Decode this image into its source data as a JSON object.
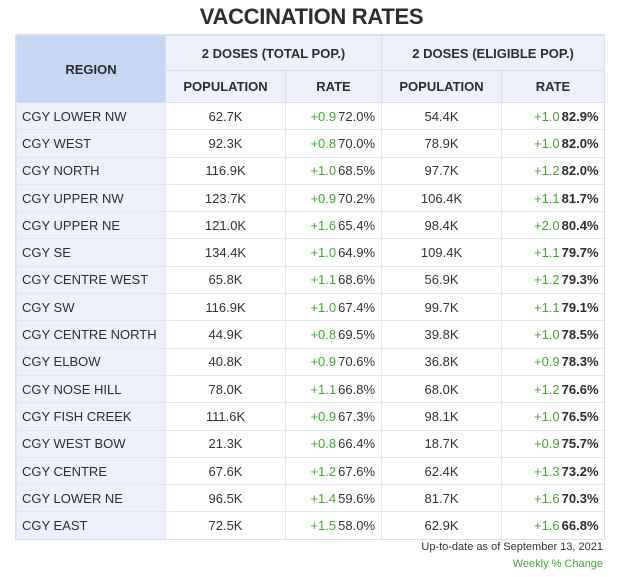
{
  "title": "VACCINATION RATES",
  "headers": {
    "region": "REGION",
    "group1": "2 DOSES (TOTAL POP.)",
    "group2": "2 DOSES (ELIGIBLE POP.)",
    "population": "POPULATION",
    "rate": "RATE"
  },
  "rows": [
    {
      "region": "CGY LOWER NW",
      "pop1": "62.7K",
      "chg1": "+0.9",
      "rate1": "72.0%",
      "pop2": "54.4K",
      "chg2": "+1.0",
      "rate2": "82.9%"
    },
    {
      "region": "CGY WEST",
      "pop1": "92.3K",
      "chg1": "+0.8",
      "rate1": "70.0%",
      "pop2": "78.9K",
      "chg2": "+1.0",
      "rate2": "82.0%"
    },
    {
      "region": "CGY NORTH",
      "pop1": "116.9K",
      "chg1": "+1.0",
      "rate1": "68.5%",
      "pop2": "97.7K",
      "chg2": "+1.2",
      "rate2": "82.0%"
    },
    {
      "region": "CGY UPPER NW",
      "pop1": "123.7K",
      "chg1": "+0.9",
      "rate1": "70.2%",
      "pop2": "106.4K",
      "chg2": "+1.1",
      "rate2": "81.7%"
    },
    {
      "region": "CGY UPPER NE",
      "pop1": "121.0K",
      "chg1": "+1.6",
      "rate1": "65.4%",
      "pop2": "98.4K",
      "chg2": "+2.0",
      "rate2": "80.4%"
    },
    {
      "region": "CGY SE",
      "pop1": "134.4K",
      "chg1": "+1.0",
      "rate1": "64.9%",
      "pop2": "109.4K",
      "chg2": "+1.1",
      "rate2": "79.7%"
    },
    {
      "region": "CGY CENTRE WEST",
      "pop1": "65.8K",
      "chg1": "+1.1",
      "rate1": "68.6%",
      "pop2": "56.9K",
      "chg2": "+1.2",
      "rate2": "79.3%"
    },
    {
      "region": "CGY SW",
      "pop1": "116.9K",
      "chg1": "+1.0",
      "rate1": "67.4%",
      "pop2": "99.7K",
      "chg2": "+1.1",
      "rate2": "79.1%"
    },
    {
      "region": "CGY CENTRE NORTH",
      "pop1": "44.9K",
      "chg1": "+0.8",
      "rate1": "69.5%",
      "pop2": "39.8K",
      "chg2": "+1.0",
      "rate2": "78.5%"
    },
    {
      "region": "CGY ELBOW",
      "pop1": "40.8K",
      "chg1": "+0.9",
      "rate1": "70.6%",
      "pop2": "36.8K",
      "chg2": "+0.9",
      "rate2": "78.3%"
    },
    {
      "region": "CGY NOSE HILL",
      "pop1": "78.0K",
      "chg1": "+1.1",
      "rate1": "66.8%",
      "pop2": "68.0K",
      "chg2": "+1.2",
      "rate2": "76.6%"
    },
    {
      "region": "CGY FISH CREEK",
      "pop1": "111.6K",
      "chg1": "+0.9",
      "rate1": "67.3%",
      "pop2": "98.1K",
      "chg2": "+1.0",
      "rate2": "76.5%"
    },
    {
      "region": "CGY WEST BOW",
      "pop1": "21.3K",
      "chg1": "+0.8",
      "rate1": "66.4%",
      "pop2": "18.7K",
      "chg2": "+0.9",
      "rate2": "75.7%"
    },
    {
      "region": "CGY CENTRE",
      "pop1": "67.6K",
      "chg1": "+1.2",
      "rate1": "67.6%",
      "pop2": "62.4K",
      "chg2": "+1.3",
      "rate2": "73.2%"
    },
    {
      "region": "CGY LOWER NE",
      "pop1": "96.5K",
      "chg1": "+1.4",
      "rate1": "59.6%",
      "pop2": "81.7K",
      "chg2": "+1.6",
      "rate2": "70.3%"
    },
    {
      "region": "CGY EAST",
      "pop1": "72.5K",
      "chg1": "+1.5",
      "rate1": "58.0%",
      "pop2": "62.9K",
      "chg2": "+1.6",
      "rate2": "66.8%"
    }
  ],
  "footer": {
    "updated": "Up-to-date as of September 13, 2021",
    "legend": "Weekly % Change"
  },
  "colors": {
    "change_green": "#42a832",
    "region_header_bg": "#c8d6f6",
    "header_bg": "#eef1fb"
  }
}
